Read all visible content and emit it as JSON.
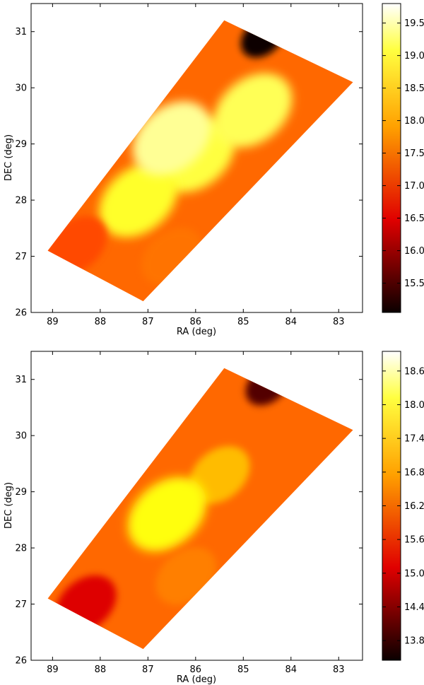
{
  "chart_data": [
    {
      "type": "heatmap",
      "title": "",
      "xlabel": "RA (deg)",
      "ylabel": "DEC (deg)",
      "xlim": [
        89.45,
        82.5
      ],
      "ylim": [
        26.0,
        31.5
      ],
      "xticks": [
        89,
        88,
        87,
        86,
        85,
        84,
        83
      ],
      "yticks": [
        26,
        27,
        28,
        29,
        30,
        31
      ],
      "colorbar": {
        "range": [
          15.05,
          19.8
        ],
        "ticks": [
          "15.5",
          "16.0",
          "16.5",
          "17.0",
          "17.5",
          "18.0",
          "18.5",
          "19.0",
          "19.5"
        ],
        "colormap": "hot"
      },
      "field_corners": [
        [
          89.1,
          27.1
        ],
        [
          85.4,
          31.2
        ],
        [
          82.7,
          30.1
        ],
        [
          87.1,
          26.2
        ]
      ],
      "regions": [
        {
          "ra": 86.0,
          "dec": 28.8,
          "value": 18.9
        },
        {
          "ra": 87.2,
          "dec": 28.0,
          "value": 18.8
        },
        {
          "ra": 84.8,
          "dec": 29.6,
          "value": 19.0
        },
        {
          "ra": 86.5,
          "dec": 29.1,
          "value": 19.3
        },
        {
          "ra": 84.6,
          "dec": 30.9,
          "value": 15.1
        },
        {
          "ra": 86.5,
          "dec": 27.0,
          "value": 17.6
        },
        {
          "ra": 88.5,
          "dec": 27.2,
          "value": 17.3
        }
      ]
    },
    {
      "type": "heatmap",
      "title": "",
      "xlabel": "RA (deg)",
      "ylabel": "DEC (deg)",
      "xlim": [
        89.45,
        82.5
      ],
      "ylim": [
        26.0,
        31.5
      ],
      "xticks": [
        89,
        88,
        87,
        86,
        85,
        84,
        83
      ],
      "yticks": [
        26,
        27,
        28,
        29,
        30,
        31
      ],
      "colorbar": {
        "range": [
          13.45,
          18.95
        ],
        "ticks": [
          "13.8",
          "14.4",
          "15.0",
          "15.6",
          "16.2",
          "16.8",
          "17.4",
          "18.0",
          "18.6"
        ],
        "colormap": "hot"
      },
      "field_corners": [
        [
          89.1,
          27.1
        ],
        [
          85.4,
          31.2
        ],
        [
          82.7,
          30.1
        ],
        [
          87.1,
          26.2
        ]
      ],
      "regions": [
        {
          "ra": 85.5,
          "dec": 29.3,
          "value": 17.0
        },
        {
          "ra": 86.6,
          "dec": 28.6,
          "value": 17.6
        },
        {
          "ra": 84.5,
          "dec": 30.9,
          "value": 14.1
        },
        {
          "ra": 88.3,
          "dec": 27.0,
          "value": 15.2
        },
        {
          "ra": 86.2,
          "dec": 27.5,
          "value": 16.5
        }
      ]
    }
  ]
}
